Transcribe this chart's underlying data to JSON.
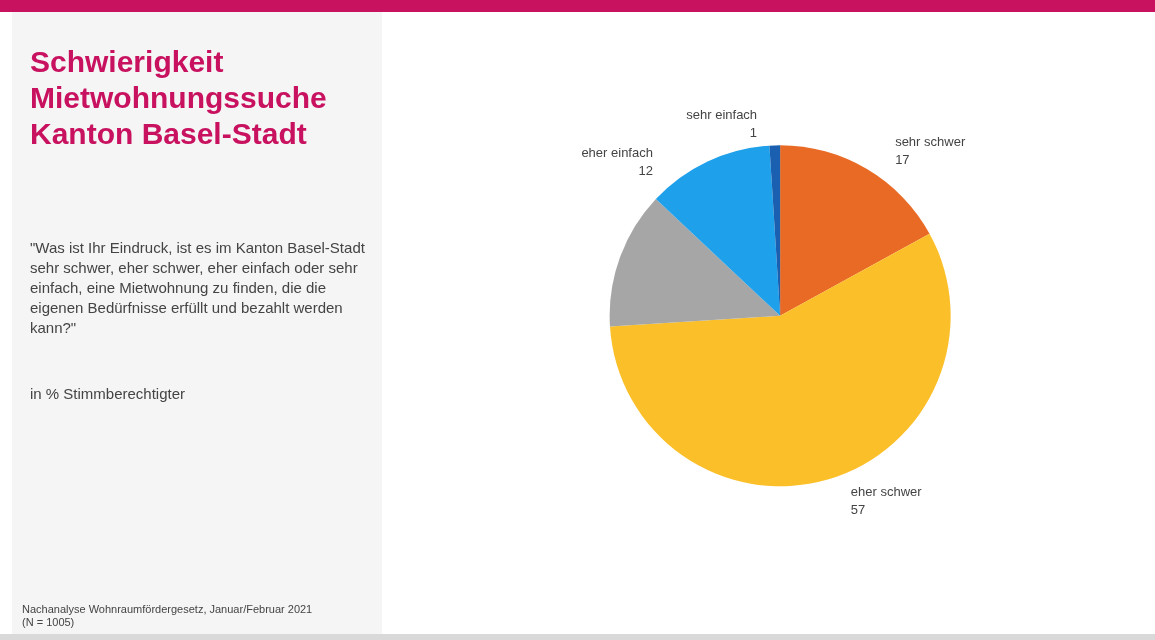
{
  "chart_data": {
    "type": "pie",
    "title": "Schwierigkeit Mietwohnungssuche Kanton Basel-Stadt",
    "subtitle": "\"Was ist Ihr Eindruck, ist es im Kanton Basel-Stadt sehr schwer, eher schwer, eher einfach oder sehr einfach, eine Mietwohnung zu finden, die die eigenen Bedürfnisse erfüllt und bezahlt werden kann?\"",
    "annotations": [
      "in % Stimmberechtigter",
      "Nachanalyse Wohnraumfördergesetz, Januar/Februar 2021 (N = 1005)"
    ],
    "categories": [
      "sehr schwer",
      "eher schwer",
      null,
      "eher einfach",
      "sehr einfach"
    ],
    "values": [
      17,
      57,
      13,
      12,
      1
    ],
    "colors": [
      "#e86a25",
      "#fbbf29",
      "#a6a6a6",
      "#1fa0ea",
      "#1a5fb0"
    ],
    "value_labels": [
      "17",
      "57",
      null,
      "12",
      "1"
    ],
    "legend": false
  }
}
